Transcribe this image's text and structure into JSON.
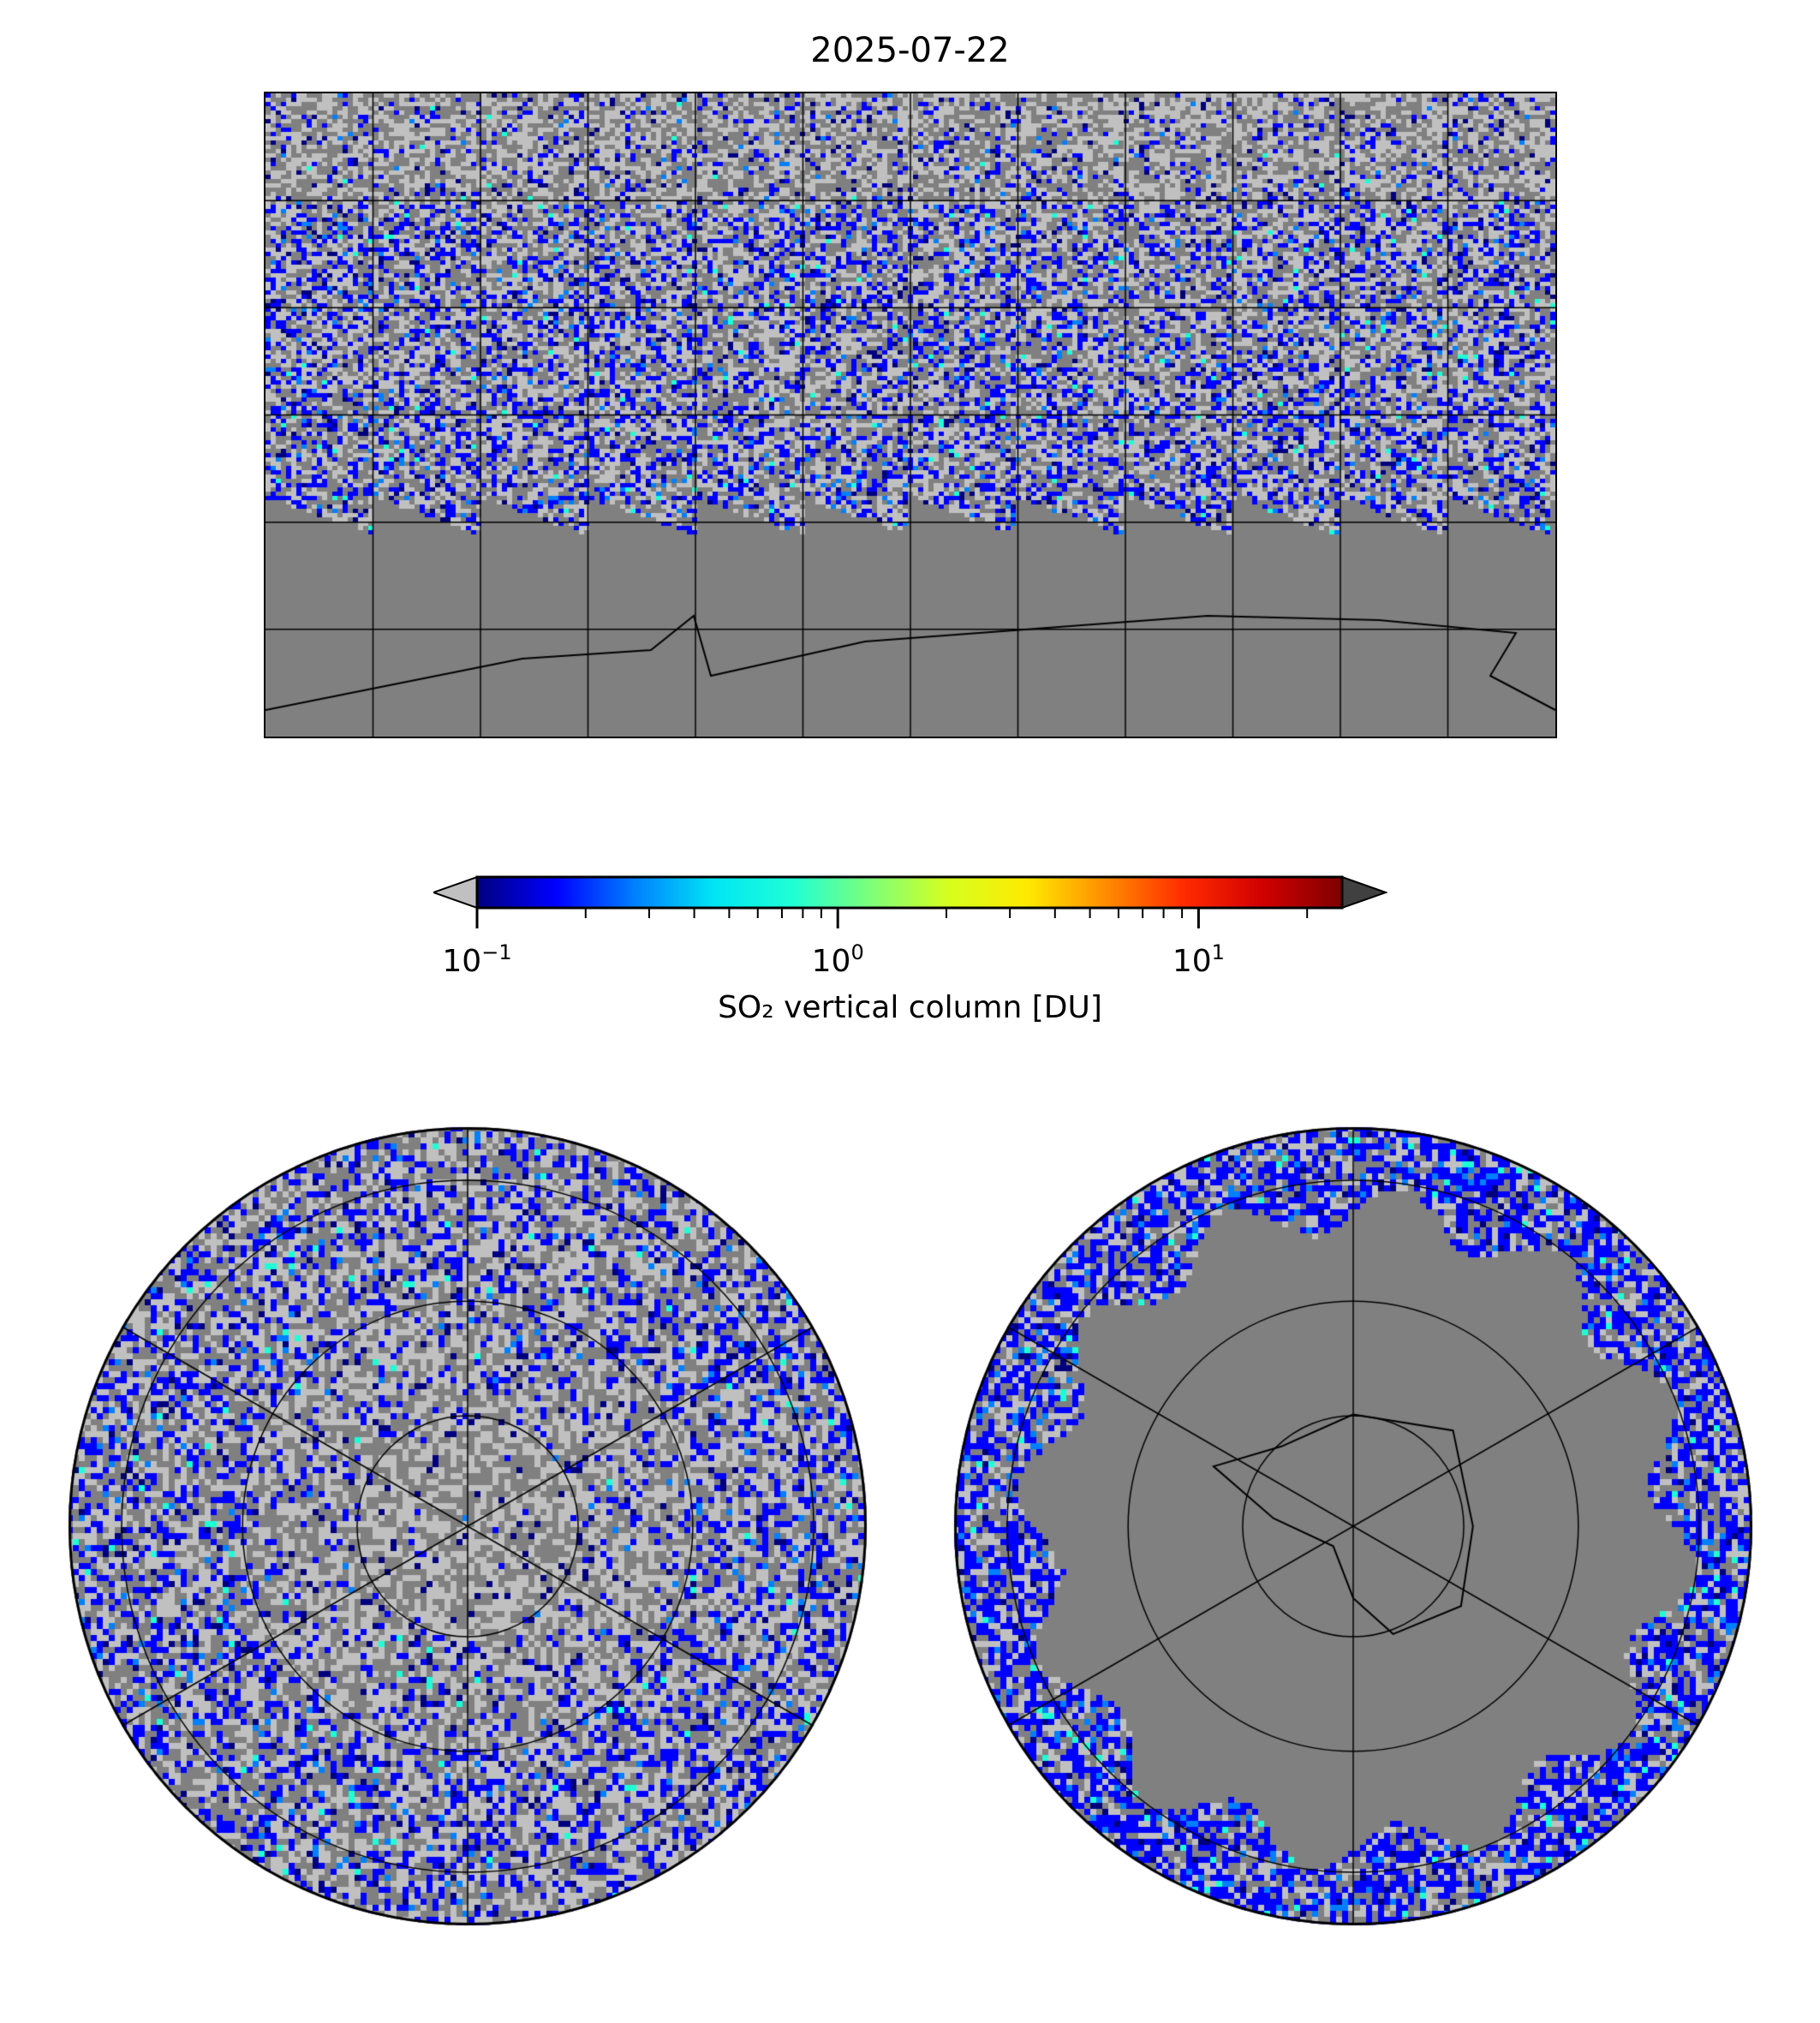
{
  "title": "2025-07-22",
  "chart_data": {
    "type": "heatmap",
    "title": "2025-07-22",
    "panels": [
      {
        "name": "global",
        "projection": "PlateCarree",
        "lon_range": [
          -180,
          180
        ],
        "lat_range": [
          -90,
          90
        ],
        "gridline_step_deg": 30
      },
      {
        "name": "north-polar",
        "projection": "NorthPolarStereo",
        "lat_circles": [
          80,
          60,
          30,
          0
        ],
        "meridian_step_deg": 60
      },
      {
        "name": "south-polar",
        "projection": "SouthPolarStereo",
        "lat_circles": [
          -80,
          -60,
          -30,
          0
        ],
        "meridian_step_deg": 60
      }
    ],
    "colorbar": {
      "label": "SO₂ vertical column [DU]",
      "scale": "log",
      "range": [
        0.1,
        25
      ],
      "extend": "both",
      "ticks": [
        {
          "value": 0.1,
          "base": "10",
          "exp": "−1"
        },
        {
          "value": 1,
          "base": "10",
          "exp": "0"
        },
        {
          "value": 10,
          "base": "10",
          "exp": "1"
        }
      ],
      "colormap": [
        "#00007f",
        "#0000ff",
        "#007fff",
        "#00e5f5",
        "#1effd6",
        "#7dff7a",
        "#d6ff1e",
        "#ffea00",
        "#ff8c00",
        "#ff2a00",
        "#d00000",
        "#7f0000"
      ],
      "under_color": "#c0c0c0",
      "over_color": "#404040"
    },
    "fill_colors": {
      "no_data": "#808080",
      "below_min": "#c0c0c0"
    }
  }
}
